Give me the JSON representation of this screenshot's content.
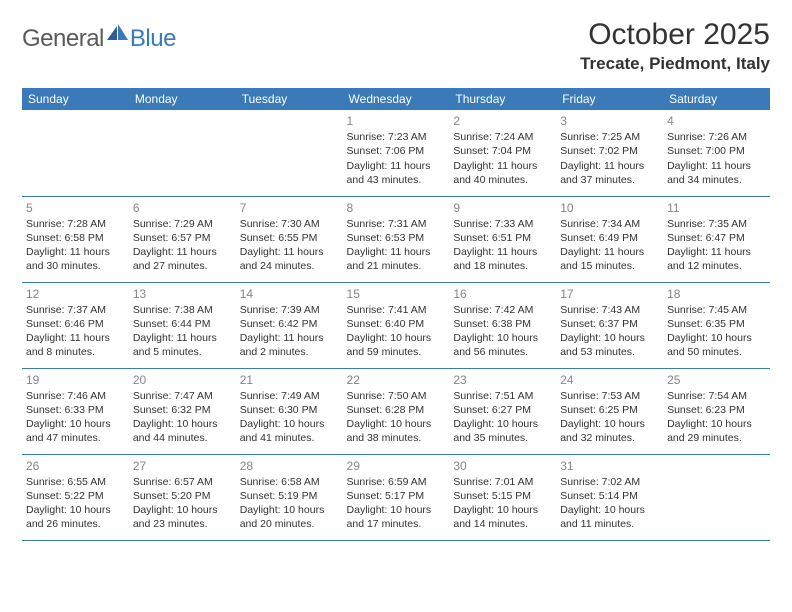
{
  "logo": {
    "general": "General",
    "blue": "Blue"
  },
  "title": "October 2025",
  "location": "Trecate, Piedmont, Italy",
  "colors": {
    "header_bg": "#3a7ab8",
    "header_text": "#ffffff",
    "day_num": "#868686",
    "text": "#333333",
    "logo_gray": "#5a5a5a",
    "logo_blue": "#3a7ab8"
  },
  "day_headers": [
    "Sunday",
    "Monday",
    "Tuesday",
    "Wednesday",
    "Thursday",
    "Friday",
    "Saturday"
  ],
  "weeks": [
    [
      null,
      null,
      null,
      {
        "n": "1",
        "sr": "7:23 AM",
        "ss": "7:06 PM",
        "dl": "11 hours and 43 minutes."
      },
      {
        "n": "2",
        "sr": "7:24 AM",
        "ss": "7:04 PM",
        "dl": "11 hours and 40 minutes."
      },
      {
        "n": "3",
        "sr": "7:25 AM",
        "ss": "7:02 PM",
        "dl": "11 hours and 37 minutes."
      },
      {
        "n": "4",
        "sr": "7:26 AM",
        "ss": "7:00 PM",
        "dl": "11 hours and 34 minutes."
      }
    ],
    [
      {
        "n": "5",
        "sr": "7:28 AM",
        "ss": "6:58 PM",
        "dl": "11 hours and 30 minutes."
      },
      {
        "n": "6",
        "sr": "7:29 AM",
        "ss": "6:57 PM",
        "dl": "11 hours and 27 minutes."
      },
      {
        "n": "7",
        "sr": "7:30 AM",
        "ss": "6:55 PM",
        "dl": "11 hours and 24 minutes."
      },
      {
        "n": "8",
        "sr": "7:31 AM",
        "ss": "6:53 PM",
        "dl": "11 hours and 21 minutes."
      },
      {
        "n": "9",
        "sr": "7:33 AM",
        "ss": "6:51 PM",
        "dl": "11 hours and 18 minutes."
      },
      {
        "n": "10",
        "sr": "7:34 AM",
        "ss": "6:49 PM",
        "dl": "11 hours and 15 minutes."
      },
      {
        "n": "11",
        "sr": "7:35 AM",
        "ss": "6:47 PM",
        "dl": "11 hours and 12 minutes."
      }
    ],
    [
      {
        "n": "12",
        "sr": "7:37 AM",
        "ss": "6:46 PM",
        "dl": "11 hours and 8 minutes."
      },
      {
        "n": "13",
        "sr": "7:38 AM",
        "ss": "6:44 PM",
        "dl": "11 hours and 5 minutes."
      },
      {
        "n": "14",
        "sr": "7:39 AM",
        "ss": "6:42 PM",
        "dl": "11 hours and 2 minutes."
      },
      {
        "n": "15",
        "sr": "7:41 AM",
        "ss": "6:40 PM",
        "dl": "10 hours and 59 minutes."
      },
      {
        "n": "16",
        "sr": "7:42 AM",
        "ss": "6:38 PM",
        "dl": "10 hours and 56 minutes."
      },
      {
        "n": "17",
        "sr": "7:43 AM",
        "ss": "6:37 PM",
        "dl": "10 hours and 53 minutes."
      },
      {
        "n": "18",
        "sr": "7:45 AM",
        "ss": "6:35 PM",
        "dl": "10 hours and 50 minutes."
      }
    ],
    [
      {
        "n": "19",
        "sr": "7:46 AM",
        "ss": "6:33 PM",
        "dl": "10 hours and 47 minutes."
      },
      {
        "n": "20",
        "sr": "7:47 AM",
        "ss": "6:32 PM",
        "dl": "10 hours and 44 minutes."
      },
      {
        "n": "21",
        "sr": "7:49 AM",
        "ss": "6:30 PM",
        "dl": "10 hours and 41 minutes."
      },
      {
        "n": "22",
        "sr": "7:50 AM",
        "ss": "6:28 PM",
        "dl": "10 hours and 38 minutes."
      },
      {
        "n": "23",
        "sr": "7:51 AM",
        "ss": "6:27 PM",
        "dl": "10 hours and 35 minutes."
      },
      {
        "n": "24",
        "sr": "7:53 AM",
        "ss": "6:25 PM",
        "dl": "10 hours and 32 minutes."
      },
      {
        "n": "25",
        "sr": "7:54 AM",
        "ss": "6:23 PM",
        "dl": "10 hours and 29 minutes."
      }
    ],
    [
      {
        "n": "26",
        "sr": "6:55 AM",
        "ss": "5:22 PM",
        "dl": "10 hours and 26 minutes."
      },
      {
        "n": "27",
        "sr": "6:57 AM",
        "ss": "5:20 PM",
        "dl": "10 hours and 23 minutes."
      },
      {
        "n": "28",
        "sr": "6:58 AM",
        "ss": "5:19 PM",
        "dl": "10 hours and 20 minutes."
      },
      {
        "n": "29",
        "sr": "6:59 AM",
        "ss": "5:17 PM",
        "dl": "10 hours and 17 minutes."
      },
      {
        "n": "30",
        "sr": "7:01 AM",
        "ss": "5:15 PM",
        "dl": "10 hours and 14 minutes."
      },
      {
        "n": "31",
        "sr": "7:02 AM",
        "ss": "5:14 PM",
        "dl": "10 hours and 11 minutes."
      },
      null
    ]
  ],
  "labels": {
    "sunrise": "Sunrise: ",
    "sunset": "Sunset: ",
    "daylight": "Daylight: "
  }
}
